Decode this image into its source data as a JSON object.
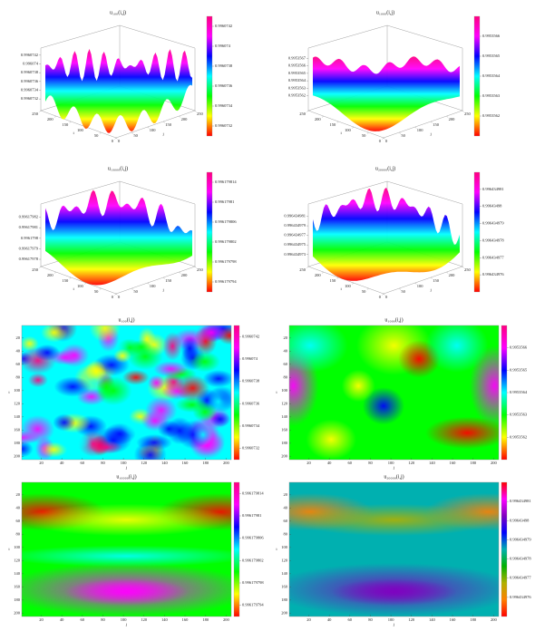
{
  "chart_data": [
    {
      "type": "surface",
      "title": "u₁₀₀(i,j)",
      "xlabel": "j",
      "ylabel": "i",
      "xticks": [
        0,
        50,
        100,
        150,
        200,
        250
      ],
      "yticks": [
        0,
        50,
        100,
        150,
        200,
        250
      ],
      "xlim": [
        0,
        250
      ],
      "ylim": [
        0,
        250
      ],
      "zlim": [
        0.9960731,
        0.9960743
      ],
      "zticks": [
        0.9960732,
        0.9960734,
        0.9960736,
        0.9960738,
        0.996074,
        0.9960742
      ],
      "clim": [
        0.9960731,
        0.9960743
      ],
      "cticks": [
        0.9960732,
        0.9960734,
        0.9960736,
        0.9960738,
        0.996074,
        0.9960742
      ],
      "colormap": [
        "#ff0000",
        "#ffff00",
        "#00ff00",
        "#00ffff",
        "#0000ff",
        "#ff00ff",
        "#ff0080"
      ]
    },
    {
      "type": "surface",
      "title": "u₁₀₀₀(i,j)",
      "xlabel": "j",
      "ylabel": "i",
      "xticks": [
        0,
        50,
        100,
        150,
        200,
        250
      ],
      "yticks": [
        0,
        50,
        100,
        150,
        200,
        250
      ],
      "xlim": [
        0,
        250
      ],
      "ylim": [
        0,
        250
      ],
      "zlim": [
        0.9953561,
        0.9953568
      ],
      "zticks": [
        0.9953562,
        0.9953563,
        0.9953564,
        0.9953565,
        0.9953566,
        0.9953567
      ],
      "clim": [
        0.9953561,
        0.9953567
      ],
      "cticks": [
        0.9953562,
        0.9953563,
        0.9953564,
        0.9953565,
        0.9953566
      ],
      "colormap": [
        "#ff0000",
        "#ffff00",
        "#00ff00",
        "#00ffff",
        "#0000ff",
        "#ff00ff",
        "#ff0080"
      ]
    },
    {
      "type": "surface",
      "title": "u₁₀₀₀₀(i,j)",
      "xlabel": "j",
      "ylabel": "i",
      "xticks": [
        0,
        50,
        100,
        150,
        200,
        250
      ],
      "yticks": [
        0,
        50,
        100,
        150,
        200,
        250
      ],
      "xlim": [
        0,
        250
      ],
      "ylim": [
        0,
        250
      ],
      "zlim": [
        0.99617978,
        0.99617983
      ],
      "zticks": [
        0.99617978,
        0.99617979,
        0.9961798,
        0.99617981,
        0.99617982
      ],
      "clim": [
        0.996179792,
        0.996179816
      ],
      "cticks": [
        0.996179794,
        0.996179798,
        0.996179802,
        0.996179806,
        0.99617981,
        0.996179814
      ],
      "colormap": [
        "#ff0000",
        "#ffff00",
        "#00ff00",
        "#00ffff",
        "#0000ff",
        "#ff00ff",
        "#ff0080"
      ]
    },
    {
      "type": "surface",
      "title": "u₂₀₀₀₀(i,j)",
      "xlabel": "j",
      "ylabel": "i",
      "xticks": [
        0,
        50,
        100,
        150,
        200,
        250
      ],
      "yticks": [
        0,
        50,
        100,
        150,
        200,
        250
      ],
      "xlim": [
        0,
        250
      ],
      "ylim": [
        0,
        250
      ],
      "zlim": [
        0.996434972,
        0.996434983
      ],
      "zticks": [
        0.996434973,
        0.996434975,
        0.996434977,
        0.996434979,
        0.996434981
      ],
      "clim": [
        0.996434975,
        0.996434982
      ],
      "cticks": [
        0.996434976,
        0.996434977,
        0.996434978,
        0.996434979,
        0.99643498,
        0.996434981
      ],
      "colormap": [
        "#ff0000",
        "#ffff00",
        "#00ff00",
        "#00ffff",
        "#0000ff",
        "#ff00ff",
        "#ff0080"
      ]
    },
    {
      "type": "heatmap",
      "title": "u₁₀₀(i,j)",
      "xlabel": "j",
      "ylabel": "i",
      "xticks": [
        20,
        40,
        60,
        80,
        100,
        120,
        140,
        160,
        180,
        200
      ],
      "yticks": [
        20,
        40,
        60,
        80,
        100,
        120,
        140,
        160,
        180,
        200
      ],
      "xlim": [
        1,
        205
      ],
      "ylim": [
        1,
        205
      ],
      "clim": [
        0.9960731,
        0.9960743
      ],
      "cticks": [
        0.9960732,
        0.9960734,
        0.9960736,
        0.9960738,
        0.996074,
        0.9960742
      ],
      "colormap": [
        "#ff0000",
        "#ffff00",
        "#00ff00",
        "#00ffff",
        "#0000ff",
        "#ff00ff",
        "#ff0080"
      ]
    },
    {
      "type": "heatmap",
      "title": "u₁₀₀₀(i,j)",
      "xlabel": "j",
      "ylabel": "i",
      "xticks": [
        20,
        40,
        60,
        80,
        100,
        120,
        140,
        160,
        180,
        200
      ],
      "yticks": [
        20,
        40,
        60,
        80,
        100,
        120,
        140,
        160,
        180,
        200
      ],
      "xlim": [
        1,
        205
      ],
      "ylim": [
        1,
        205
      ],
      "clim": [
        0.9953561,
        0.9953567
      ],
      "cticks": [
        0.9953562,
        0.9953563,
        0.9953564,
        0.9953565,
        0.9953566
      ],
      "colormap": [
        "#ff0000",
        "#ffff00",
        "#00ff00",
        "#00ffff",
        "#0000ff",
        "#ff00ff",
        "#ff0080"
      ]
    },
    {
      "type": "heatmap",
      "title": "u₁₀₀₀₀(i,j)",
      "xlabel": "j",
      "ylabel": "i",
      "xticks": [
        20,
        40,
        60,
        80,
        100,
        120,
        140,
        160,
        180,
        200
      ],
      "yticks": [
        20,
        40,
        60,
        80,
        100,
        120,
        140,
        160,
        180,
        200
      ],
      "xlim": [
        1,
        205
      ],
      "ylim": [
        1,
        205
      ],
      "clim": [
        0.996179792,
        0.996179816
      ],
      "cticks": [
        0.996179794,
        0.996179798,
        0.996179802,
        0.996179806,
        0.99617981,
        0.996179814
      ],
      "colormap": [
        "#ff0000",
        "#ffff00",
        "#00ff00",
        "#00ffff",
        "#0000ff",
        "#ff00ff",
        "#ff0080"
      ]
    },
    {
      "type": "heatmap",
      "title": "u₂₀₀₀₀(i,j)",
      "xlabel": "j",
      "ylabel": "i",
      "xticks": [
        20,
        40,
        60,
        80,
        100,
        120,
        140,
        160,
        180,
        200
      ],
      "yticks": [
        20,
        40,
        60,
        80,
        100,
        120,
        140,
        160,
        180,
        200
      ],
      "xlim": [
        1,
        205
      ],
      "ylim": [
        1,
        205
      ],
      "clim": [
        0.996434975,
        0.996434982
      ],
      "cticks": [
        0.996434976,
        0.996434977,
        0.996434978,
        0.996434979,
        0.99643498,
        0.996434981
      ],
      "colormap": [
        "#ff0000",
        "#ff8000",
        "#b0b000",
        "#00b000",
        "#00b0b0",
        "#0000ff",
        "#8000c0",
        "#ff00ff",
        "#ff0000"
      ]
    }
  ]
}
